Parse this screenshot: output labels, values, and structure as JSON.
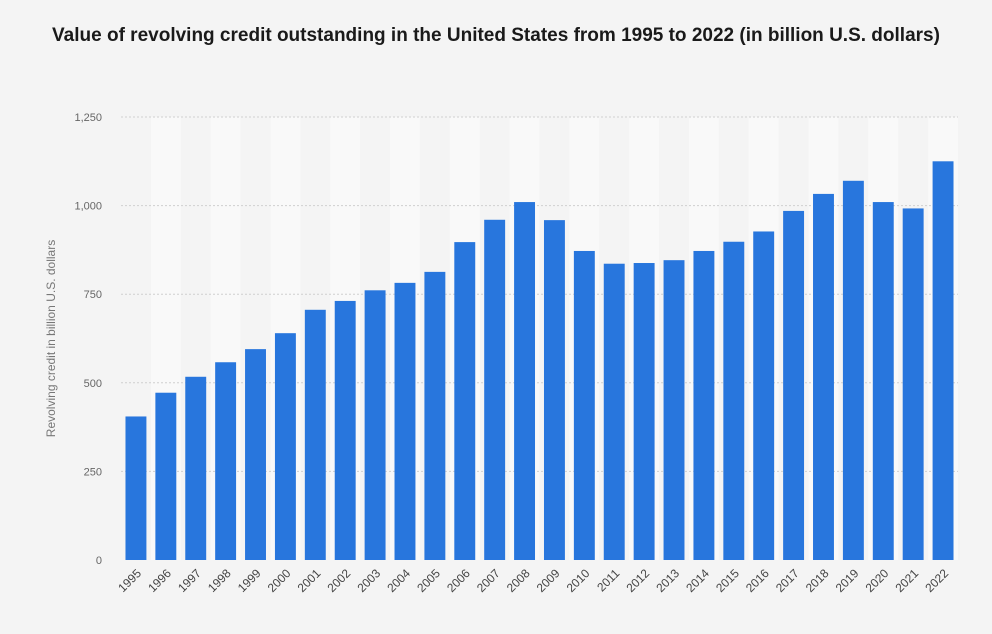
{
  "chart_data": {
    "type": "bar",
    "title": "Value of revolving credit outstanding in the United States from 1995 to 2022 (in billion U.S. dollars)",
    "xlabel": "",
    "ylabel": "Revolving credit in billion U.S. dollars",
    "ylim": [
      0,
      1250
    ],
    "yticks": [
      0,
      250,
      500,
      750,
      1000,
      1250
    ],
    "ytick_labels": [
      "0",
      "250",
      "500",
      "750",
      "1,000",
      "1,250"
    ],
    "grid": true,
    "categories": [
      "1995",
      "1996",
      "1997",
      "1998",
      "1999",
      "2000",
      "2001",
      "2002",
      "2003",
      "2004",
      "2005",
      "2006",
      "2007",
      "2008",
      "2009",
      "2010",
      "2011",
      "2012",
      "2013",
      "2014",
      "2015",
      "2016",
      "2017",
      "2018",
      "2019",
      "2020",
      "2021",
      "2022"
    ],
    "values": [
      405,
      472,
      517,
      558,
      595,
      640,
      706,
      731,
      761,
      782,
      813,
      897,
      960,
      1010,
      959,
      872,
      836,
      838,
      846,
      872,
      898,
      927,
      985,
      1033,
      1070,
      1010,
      992,
      1125
    ],
    "bar_color": "#2876dd"
  }
}
